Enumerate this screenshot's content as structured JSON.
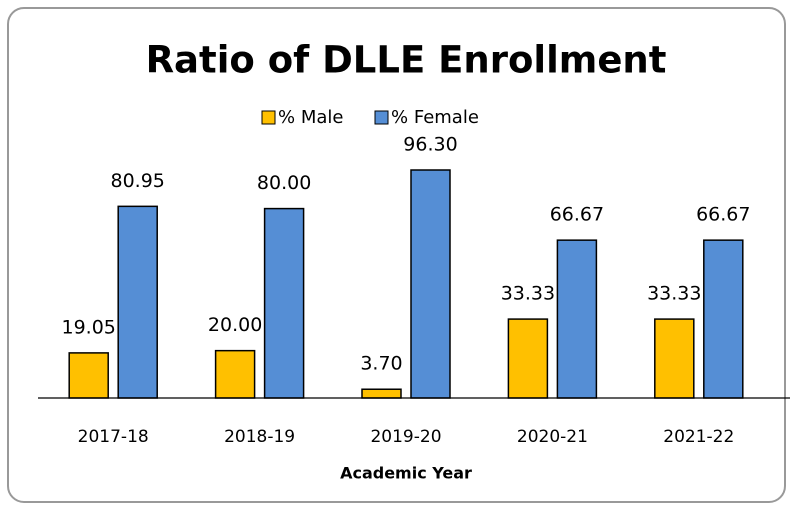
{
  "chart_data": {
    "type": "bar",
    "title": "Ratio of DLLE Enrollment",
    "x_label": "Academic Year",
    "categories": [
      "2017-18",
      "2018-19",
      "2019-20",
      "2020-21",
      "2021-22"
    ],
    "series": [
      {
        "name": "% Male",
        "color": "#ffc000",
        "values": [
          19.05,
          20.0,
          3.7,
          33.33,
          33.33
        ],
        "value_labels": [
          "19.05",
          "20.00",
          "3.70",
          "33.33",
          "33.33"
        ]
      },
      {
        "name": "% Female",
        "color": "#558ed5",
        "values": [
          80.95,
          80.0,
          96.3,
          66.67,
          66.67
        ],
        "value_labels": [
          "80.95",
          "80.00",
          "96.30",
          "66.67",
          "66.67"
        ]
      }
    ]
  }
}
